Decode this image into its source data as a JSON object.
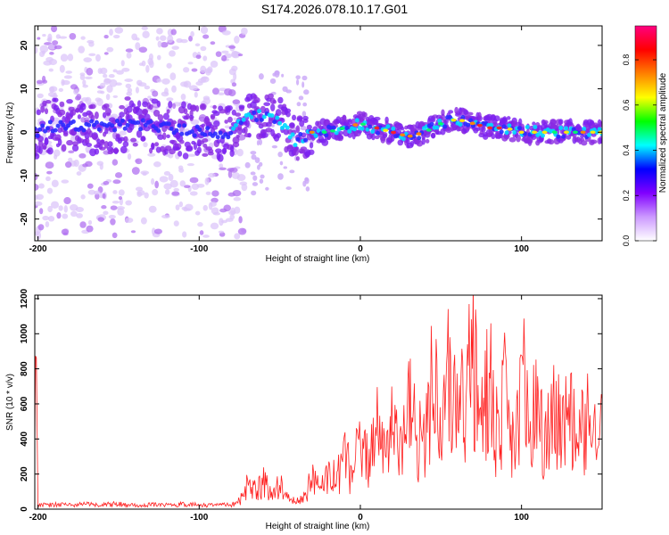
{
  "title": "S174.2026.078.10.17.G01",
  "chart_data": [
    {
      "type": "heatmap",
      "name": "spectrogram",
      "xlabel": "Height of straight line (km)",
      "ylabel": "Frequency (Hz)",
      "xlim": [
        -202,
        150
      ],
      "ylim": [
        -25,
        24.5
      ],
      "xticks": [
        -200,
        -100,
        0,
        100
      ],
      "xtick_labels": [
        "-200",
        "-100",
        "0",
        "100"
      ],
      "yticks": [
        -20,
        -10,
        0,
        10,
        20
      ],
      "ytick_labels": [
        "-20",
        "-10",
        "0",
        "10",
        "20"
      ],
      "colorbar": {
        "label": "Normalized spectral amplitude",
        "range": [
          0,
          0.95
        ],
        "ticks": [
          0,
          0.2,
          0.4,
          0.6,
          0.8
        ],
        "tick_labels": [
          "0.0",
          "0.2",
          "0.4",
          "0.6",
          "0.8"
        ],
        "colormap": [
          "#ffffff",
          "#cc99ff",
          "#8000ff",
          "#0000ff",
          "#00ffff",
          "#00ff00",
          "#ffff00",
          "#ff8000",
          "#ff0000",
          "#ff0080"
        ]
      },
      "ridge": {
        "description": "main frequency ridge (height km, frequency Hz)",
        "x": [
          -200,
          -180,
          -160,
          -140,
          -120,
          -100,
          -80,
          -70,
          -60,
          -50,
          -40,
          -30,
          -20,
          -10,
          0,
          10,
          20,
          30,
          40,
          50,
          60,
          70,
          80,
          90,
          100,
          110,
          120,
          130,
          140,
          150
        ],
        "y": [
          1,
          2,
          1,
          2,
          1,
          0,
          0,
          3,
          4,
          3,
          -2,
          0,
          0,
          1,
          2,
          1,
          0,
          -1,
          0,
          2,
          3,
          2,
          1,
          1,
          0,
          0,
          0,
          0,
          0,
          0
        ]
      }
    },
    {
      "type": "line",
      "name": "snr",
      "xlabel": "Height of straight line (km)",
      "ylabel": "SNR (10 * v/v)",
      "xlim": [
        -202,
        150
      ],
      "ylim": [
        0,
        1220
      ],
      "xticks": [
        -200,
        -100,
        0,
        100
      ],
      "xtick_labels": [
        "-200",
        "-100",
        "0",
        "100"
      ],
      "yticks": [
        0,
        200,
        400,
        600,
        800,
        1000,
        1200
      ],
      "ytick_labels": [
        "0",
        "200",
        "400",
        "600",
        "800",
        "1000",
        "1200"
      ],
      "line_color": "#ff2020",
      "series": [
        {
          "name": "SNR",
          "x": [
            -200,
            -190,
            -180,
            -170,
            -160,
            -150,
            -140,
            -130,
            -120,
            -110,
            -100,
            -90,
            -80,
            -75,
            -70,
            -65,
            -60,
            -55,
            -50,
            -45,
            -40,
            -35,
            -30,
            -25,
            -20,
            -15,
            -10,
            -5,
            0,
            5,
            10,
            15,
            20,
            25,
            30,
            35,
            40,
            45,
            50,
            55,
            60,
            65,
            70,
            75,
            80,
            85,
            90,
            95,
            100,
            105,
            110,
            115,
            120,
            125,
            130,
            135,
            140,
            145,
            150
          ],
          "values": [
            25,
            30,
            28,
            33,
            30,
            35,
            28,
            30,
            27,
            32,
            28,
            26,
            30,
            80,
            190,
            150,
            220,
            130,
            200,
            110,
            60,
            90,
            260,
            140,
            330,
            250,
            420,
            300,
            560,
            380,
            700,
            430,
            820,
            520,
            900,
            580,
            700,
            1060,
            620,
            1100,
            820,
            950,
            1220,
            700,
            1100,
            600,
            980,
            560,
            1150,
            640,
            920,
            560,
            900,
            580,
            840,
            620,
            760,
            520,
            820
          ]
        }
      ]
    }
  ]
}
